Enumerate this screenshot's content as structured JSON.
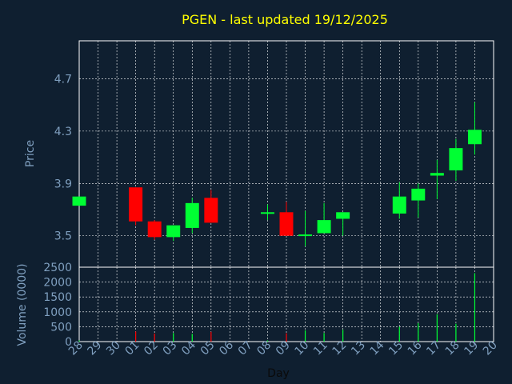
{
  "chart_data": [
    {
      "type": "candlestick",
      "title": "PGEN - last updated 19/12/2025",
      "ylabel": "Price",
      "ylim": [
        3.26,
        4.99
      ],
      "yticks": [
        "3.5",
        "3.9",
        "4.3",
        "4.7"
      ],
      "grid": true,
      "colors": {
        "up": "#00ff33",
        "down": "#ff0000",
        "background": "#0f1f30",
        "grid": "#ffffff",
        "title": "#ffff00",
        "ticks": "#7f9fbf"
      },
      "x": [
        "28",
        "29",
        "30",
        "01",
        "02",
        "03",
        "04",
        "05",
        "06",
        "07",
        "08",
        "09",
        "10",
        "11",
        "12",
        "13",
        "14",
        "15",
        "16",
        "17",
        "18",
        "19",
        "20"
      ],
      "candles": [
        {
          "day": "28",
          "open": 3.73,
          "high": 3.8,
          "low": 3.73,
          "close": 3.8
        },
        {
          "day": "01",
          "open": 3.87,
          "high": 3.87,
          "low": 3.58,
          "close": 3.61
        },
        {
          "day": "02",
          "open": 3.61,
          "high": 3.62,
          "low": 3.47,
          "close": 3.49
        },
        {
          "day": "03",
          "open": 3.49,
          "high": 3.58,
          "low": 3.46,
          "close": 3.58
        },
        {
          "day": "04",
          "open": 3.56,
          "high": 3.79,
          "low": 3.52,
          "close": 3.75
        },
        {
          "day": "05",
          "open": 3.79,
          "high": 3.85,
          "low": 3.6,
          "close": 3.6
        },
        {
          "day": "08",
          "open": 3.68,
          "high": 3.74,
          "low": 3.62,
          "close": 3.68
        },
        {
          "day": "09",
          "open": 3.68,
          "high": 3.76,
          "low": 3.5,
          "close": 3.5
        },
        {
          "day": "10",
          "open": 3.5,
          "high": 3.69,
          "low": 3.42,
          "close": 3.51
        },
        {
          "day": "11",
          "open": 3.52,
          "high": 3.75,
          "low": 3.52,
          "close": 3.62
        },
        {
          "day": "12",
          "open": 3.63,
          "high": 3.68,
          "low": 3.5,
          "close": 3.68
        },
        {
          "day": "15",
          "open": 3.67,
          "high": 3.91,
          "low": 3.63,
          "close": 3.8
        },
        {
          "day": "16",
          "open": 3.77,
          "high": 3.9,
          "low": 3.64,
          "close": 3.86
        },
        {
          "day": "17",
          "open": 3.96,
          "high": 4.08,
          "low": 3.78,
          "close": 3.98
        },
        {
          "day": "18",
          "open": 4.0,
          "high": 4.24,
          "low": 3.92,
          "close": 4.17
        },
        {
          "day": "19",
          "open": 4.2,
          "high": 4.52,
          "low": 4.12,
          "close": 4.31
        }
      ]
    },
    {
      "type": "bar",
      "ylabel": "Volume (0000)",
      "xlabel": "Day",
      "ylim": [
        0,
        2500
      ],
      "yticks": [
        "0",
        "500",
        "1000",
        "1500",
        "2000",
        "2500"
      ],
      "grid": true,
      "categories": [
        "28",
        "01",
        "02",
        "03",
        "04",
        "05",
        "08",
        "09",
        "10",
        "11",
        "12",
        "15",
        "16",
        "17",
        "18",
        "19"
      ],
      "values": [
        40,
        340,
        270,
        290,
        260,
        330,
        40,
        280,
        380,
        290,
        400,
        500,
        620,
        920,
        600,
        2300
      ],
      "directions": [
        "up",
        "down",
        "down",
        "up",
        "up",
        "down",
        "up",
        "down",
        "up",
        "up",
        "up",
        "up",
        "up",
        "up",
        "up",
        "up"
      ]
    }
  ]
}
